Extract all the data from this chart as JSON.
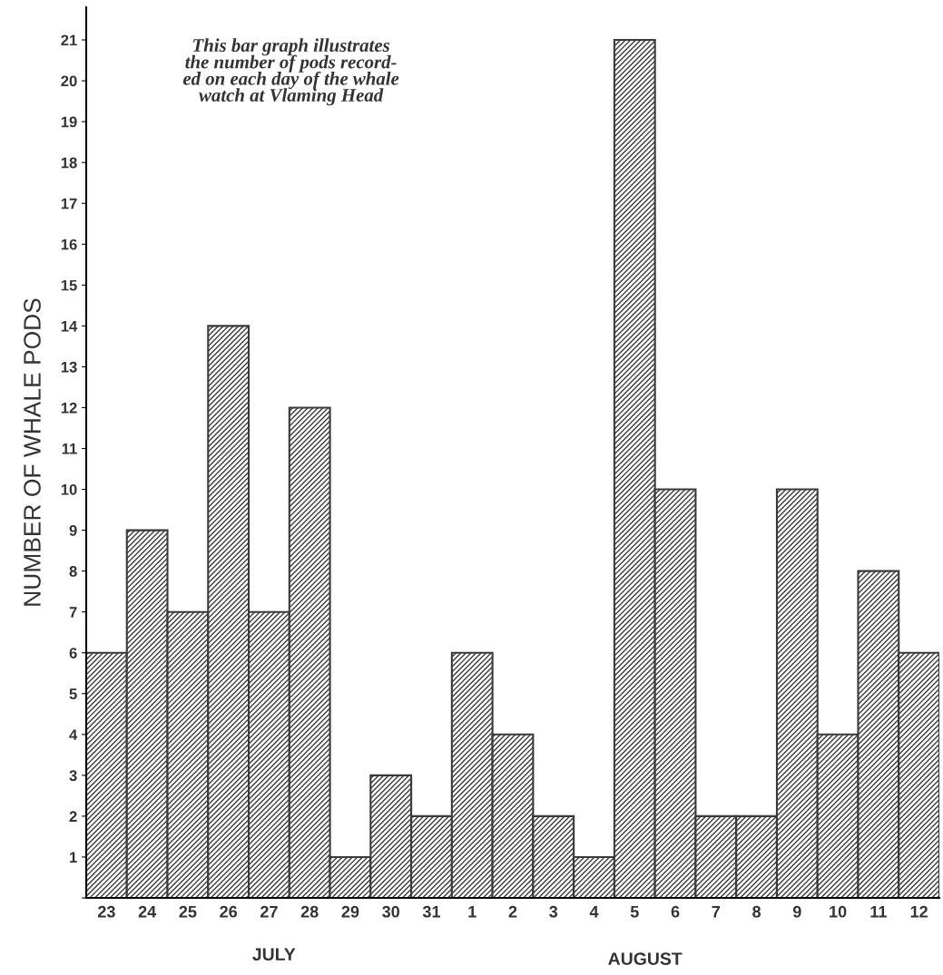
{
  "chart_data": {
    "type": "bar",
    "ylabel": "NUMBER OF WHALE PODS",
    "categories": [
      "23",
      "24",
      "25",
      "26",
      "27",
      "28",
      "29",
      "30",
      "31",
      "1",
      "2",
      "3",
      "4",
      "5",
      "6",
      "7",
      "8",
      "9",
      "10",
      "11",
      "12"
    ],
    "values": [
      6,
      9,
      7,
      14,
      7,
      12,
      1,
      3,
      2,
      6,
      4,
      2,
      1,
      21,
      10,
      2,
      2,
      10,
      4,
      8,
      6
    ],
    "color": "#3a3a3a",
    "ylim": [
      0,
      21.8
    ],
    "yticks": [
      {
        "value": 0,
        "label": null
      },
      1,
      2,
      3,
      4,
      5,
      6,
      7,
      8,
      9,
      10,
      11,
      12,
      13,
      14,
      15,
      16,
      17,
      18,
      19,
      20,
      21
    ],
    "grid": false,
    "annotations": [
      "This bar graph illustrates\nthe number of pods record-\ned on each day of the whale\nwatch at Vlaming Head",
      "JULY",
      "AUGUST"
    ]
  }
}
